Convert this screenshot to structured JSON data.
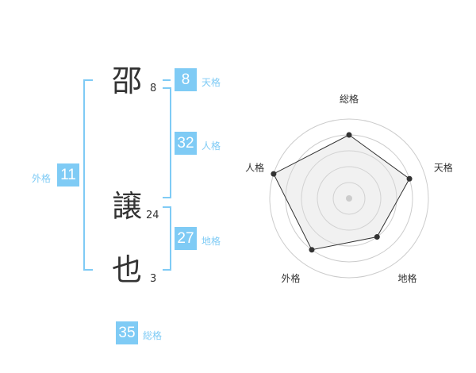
{
  "name": {
    "chars": [
      {
        "char": "邵",
        "strokes": "8"
      },
      {
        "char": "譲",
        "strokes": "24"
      },
      {
        "char": "也",
        "strokes": "3"
      }
    ]
  },
  "fortunes": {
    "tenkaku": {
      "label": "天格",
      "value": "8"
    },
    "jinkaku": {
      "label": "人格",
      "value": "32"
    },
    "chikaku": {
      "label": "地格",
      "value": "27"
    },
    "gaikaku": {
      "label": "外格",
      "value": "11"
    },
    "soukaku": {
      "label": "総格",
      "value": "35"
    }
  },
  "colors": {
    "accent": "#7fcbf5",
    "text": "#333333",
    "grid": "#cccccc",
    "fill": "#f0f0f0"
  },
  "chart_data": {
    "type": "radar",
    "axes": [
      "総格",
      "天格",
      "地格",
      "外格",
      "人格"
    ],
    "values": [
      4,
      4,
      3,
      4,
      5
    ],
    "range": [
      0,
      5
    ],
    "rings": 5
  }
}
